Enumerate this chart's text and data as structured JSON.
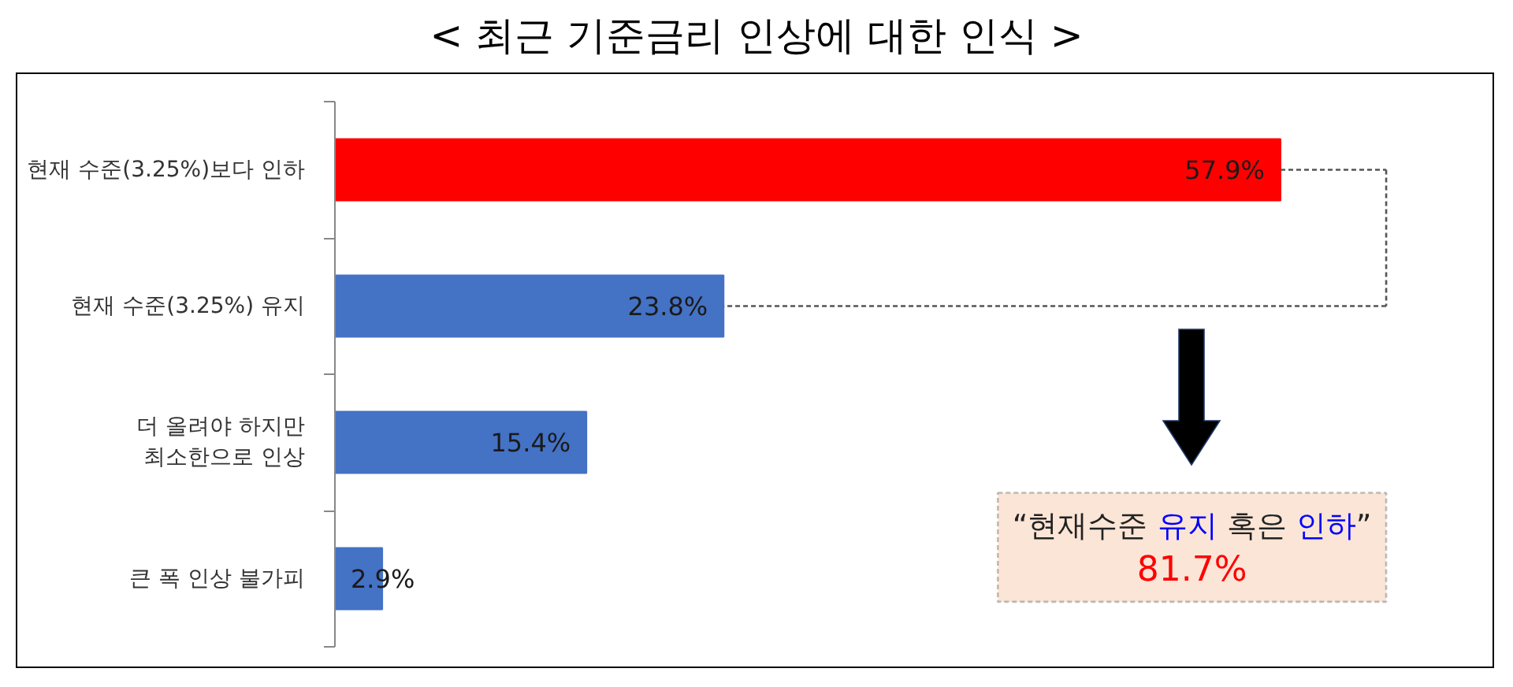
{
  "chart_data": {
    "type": "bar",
    "title": "< 최근 기준금리 인상에 대한 인식 >",
    "orientation": "horizontal",
    "categories": [
      "현재 수준(3.25%)보다 인하",
      "현재 수준(3.25%) 유지",
      "더 올려야 하지만\n최소한으로 인상",
      "큰 폭 인상 불가피"
    ],
    "values": [
      57.9,
      23.8,
      15.4,
      2.9
    ],
    "colors": [
      "#ff0000",
      "#4472c4",
      "#4472c4",
      "#4472c4"
    ],
    "value_labels": [
      "57.9%",
      "23.8%",
      "15.4%",
      "2.9%"
    ],
    "annotations": [
      "“현재수준 유지 혹은 인하”",
      "81.7%"
    ]
  }
}
